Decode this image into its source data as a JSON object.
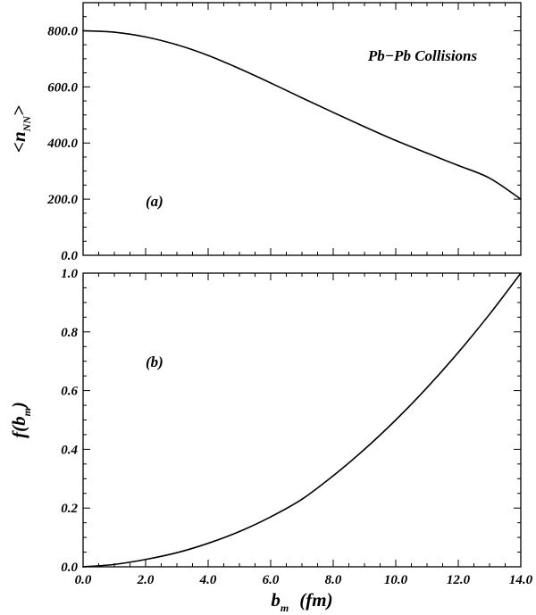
{
  "chart_data": [
    {
      "panel": "a",
      "type": "line",
      "annotation": "(a)",
      "label": "Pb−Pb Collisions",
      "ylabel": "<n_NN>",
      "ylabel_parts": {
        "pre": "<n",
        "sub": "NN",
        "post": ">"
      },
      "xlim": [
        0,
        14
      ],
      "ylim": [
        0,
        900
      ],
      "yticks": [
        0,
        200,
        400,
        600,
        800
      ],
      "ytick_labels": [
        "0.0",
        "200.0",
        "400.0",
        "600.0",
        "800.0"
      ],
      "grid": false,
      "series": [
        {
          "x": [
            0,
            1,
            2,
            3,
            4,
            5,
            6,
            7,
            8,
            9,
            10,
            11,
            12,
            13,
            14
          ],
          "y": [
            800,
            795,
            778,
            750,
            712,
            665,
            614,
            561,
            509,
            458,
            409,
            364,
            320,
            275,
            200
          ]
        }
      ]
    },
    {
      "panel": "b",
      "type": "line",
      "annotation": "(b)",
      "ylabel": "f(b_m)",
      "ylabel_parts": {
        "pre": "f(b",
        "sub": "m",
        "post": ")"
      },
      "xlabel": "b_m (fm)",
      "xlabel_parts": {
        "pre": "b",
        "sub": "m",
        "post": "(fm)"
      },
      "xlim": [
        0,
        14
      ],
      "ylim": [
        0,
        1
      ],
      "xticks": [
        0,
        2,
        4,
        6,
        8,
        10,
        12,
        14
      ],
      "xtick_labels": [
        "0.0",
        "2.0",
        "4.0",
        "6.0",
        "8.0",
        "10.0",
        "12.0",
        "14.0"
      ],
      "yticks": [
        0,
        0.2,
        0.4,
        0.6,
        0.8,
        1.0
      ],
      "ytick_labels": [
        "0.0",
        "0.2",
        "0.4",
        "0.6",
        "0.8",
        "1.0"
      ],
      "grid": false,
      "series": [
        {
          "x": [
            0,
            1,
            2,
            3,
            4,
            5,
            6,
            7,
            8,
            9,
            10,
            11,
            12,
            13,
            14
          ],
          "y": [
            0,
            0.008,
            0.025,
            0.048,
            0.08,
            0.12,
            0.17,
            0.23,
            0.31,
            0.4,
            0.5,
            0.61,
            0.73,
            0.86,
            1.0
          ]
        }
      ]
    }
  ]
}
